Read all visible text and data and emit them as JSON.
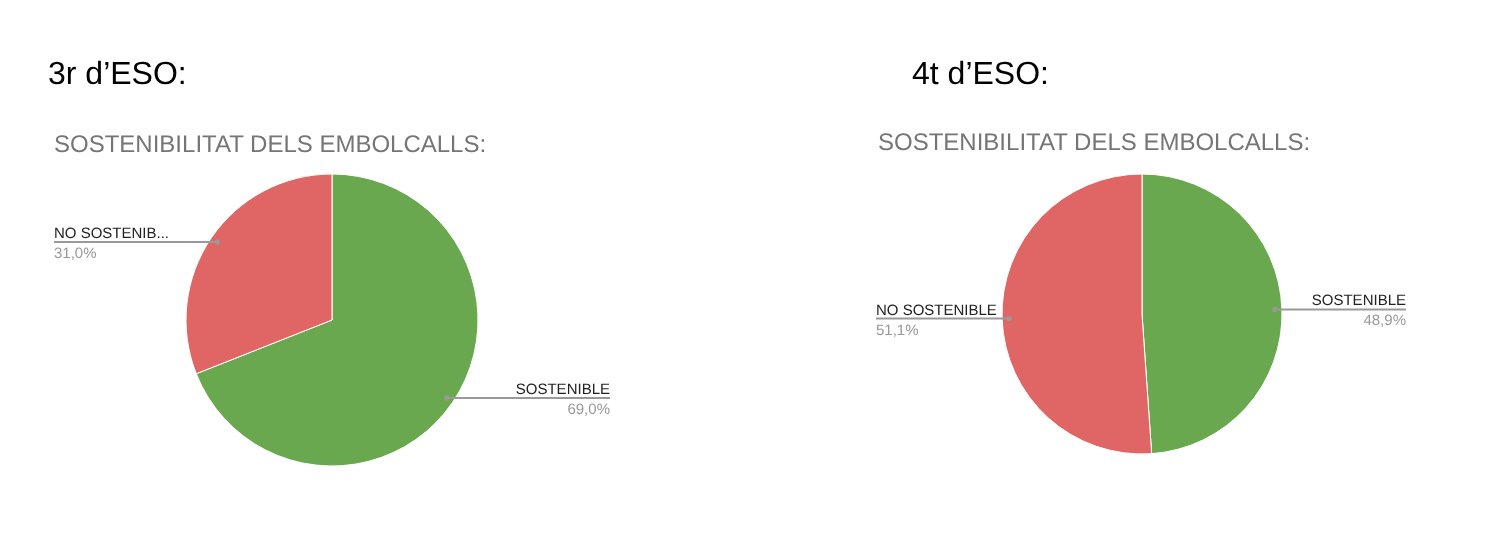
{
  "chart_data": [
    {
      "type": "pie",
      "title": "3r d’ESO:",
      "subtitle": "SOSTENIBILITAT DELS EMBOLCALLS:",
      "categories": [
        "SOSTENIBLE",
        "NO SOSTENIB..."
      ],
      "values": [
        69.0,
        31.0
      ],
      "colors": [
        "#6aa84f",
        "#e06666"
      ],
      "value_labels": [
        "69,0%",
        "31,0%"
      ]
    },
    {
      "type": "pie",
      "title": "4t d’ESO:",
      "subtitle": "SOSTENIBILITAT DELS EMBOLCALLS:",
      "categories": [
        "SOSTENIBLE",
        "NO SOSTENIBLE"
      ],
      "values": [
        48.9,
        51.1
      ],
      "colors": [
        "#6aa84f",
        "#e06666"
      ],
      "value_labels": [
        "48,9%",
        "51,1%"
      ]
    }
  ]
}
